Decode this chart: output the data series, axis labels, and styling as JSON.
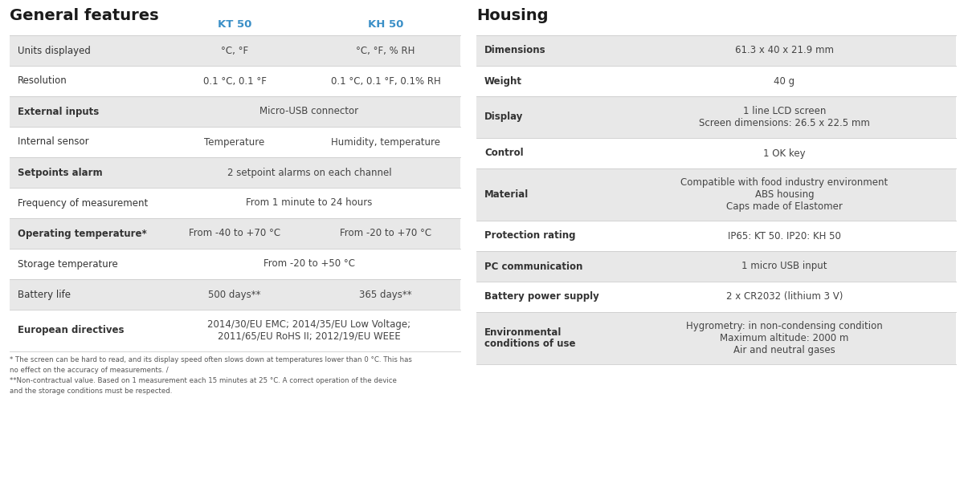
{
  "bg_color": "#ffffff",
  "left_title": "General features",
  "right_title": "Housing",
  "header_kt": "KT 50",
  "header_kh": "KH 50",
  "header_color": "#3a8fc7",
  "title_color": "#1a1a1a",
  "label_color": "#333333",
  "value_color": "#444444",
  "row_bg_shaded": "#e8e8e8",
  "row_bg_white": "#ffffff",
  "divider_color": "#cccccc",
  "left_rows": [
    {
      "label": "Units displayed",
      "kt": "°C, °F",
      "kh": "°C, °F, % RH",
      "shaded": true,
      "bold_label": false,
      "merged": false
    },
    {
      "label": "Resolution",
      "kt": "0.1 °C, 0.1 °F",
      "kh": "0.1 °C, 0.1 °F, 0.1% RH",
      "shaded": false,
      "bold_label": false,
      "merged": false
    },
    {
      "label": "External inputs",
      "kt": "Micro-USB connector",
      "kh": "",
      "shaded": true,
      "bold_label": true,
      "merged": true
    },
    {
      "label": "Internal sensor",
      "kt": "Temperature",
      "kh": "Humidity, temperature",
      "shaded": false,
      "bold_label": false,
      "merged": false
    },
    {
      "label": "Setpoints alarm",
      "kt": "2 setpoint alarms on each channel",
      "kh": "",
      "shaded": true,
      "bold_label": true,
      "merged": true
    },
    {
      "label": "Frequency of measurement",
      "kt": "From 1 minute to 24 hours",
      "kh": "",
      "shaded": false,
      "bold_label": false,
      "merged": true
    },
    {
      "label": "Operating temperature*",
      "kt": "From -40 to +70 °C",
      "kh": "From -20 to +70 °C",
      "shaded": true,
      "bold_label": true,
      "merged": false
    },
    {
      "label": "Storage temperature",
      "kt": "From -20 to +50 °C",
      "kh": "",
      "shaded": false,
      "bold_label": false,
      "merged": true
    },
    {
      "label": "Battery life",
      "kt": "500 days**",
      "kh": "365 days**",
      "shaded": true,
      "bold_label": false,
      "merged": false
    },
    {
      "label": "European directives",
      "kt": "2014/30/EU EMC; 2014/35/EU Low Voltage;\n2011/65/EU RoHS II; 2012/19/EU WEEE",
      "kh": "",
      "shaded": false,
      "bold_label": true,
      "merged": true
    }
  ],
  "footnote1": "* The screen can be hard to read, and its display speed often slows down at temperatures lower than 0 °C. This has",
  "footnote2": "no effect on the accuracy of measurements. /",
  "footnote3": "**Non-contractual value. Based on 1 measurement each 15 minutes at 25 °C. A correct operation of the device",
  "footnote4": "and the storage conditions must be respected.",
  "right_rows": [
    {
      "label": "Dimensions",
      "value": "61.3 x 40 x 21.9 mm",
      "shaded": true,
      "multiline": false
    },
    {
      "label": "Weight",
      "value": "40 g",
      "shaded": false,
      "multiline": false
    },
    {
      "label": "Display",
      "value": "1 line LCD screen\nScreen dimensions: 26.5 x 22.5 mm",
      "shaded": true,
      "multiline": true
    },
    {
      "label": "Control",
      "value": "1 OK key",
      "shaded": false,
      "multiline": false
    },
    {
      "label": "Material",
      "value": "Compatible with food industry environment\nABS housing\nCaps made of Elastomer",
      "shaded": true,
      "multiline": true
    },
    {
      "label": "Protection rating",
      "value": "IP65: KT 50. IP20: KH 50",
      "shaded": false,
      "multiline": false
    },
    {
      "label": "PC communication",
      "value": "1 micro USB input",
      "shaded": true,
      "multiline": false
    },
    {
      "label": "Battery power supply",
      "value": "2 x CR2032 (lithium 3 V)",
      "shaded": false,
      "multiline": false
    },
    {
      "label": "Environmental\nconditions of use",
      "value": "Hygrometry: in non-condensing condition\nMaximum altitude: 2000 m\nAir and neutral gases",
      "shaded": true,
      "multiline": true
    }
  ]
}
